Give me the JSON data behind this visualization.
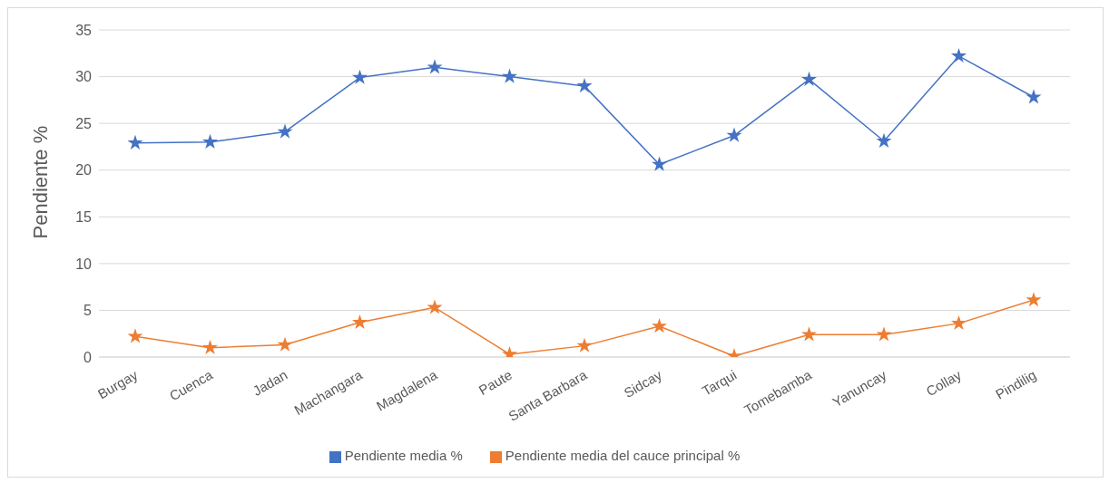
{
  "chart_data": {
    "type": "line",
    "ylabel": "Pendiente %",
    "categories": [
      "Burgay",
      "Cuenca",
      "Jadan",
      "Machangara",
      "Magdalena",
      "Paute",
      "Santa Barbara",
      "Sidcay",
      "Tarqui",
      "Tomebamba",
      "Yanuncay",
      "Collay",
      "Pindilig"
    ],
    "series": [
      {
        "name": "Pendiente media %",
        "color": "#4472c4",
        "values": [
          22.9,
          23.0,
          24.1,
          29.9,
          31.0,
          30.0,
          29.0,
          20.6,
          23.7,
          29.7,
          23.1,
          32.2,
          27.8
        ]
      },
      {
        "name": "Pendiente media del cauce principal %",
        "color": "#ed7d31",
        "values": [
          2.2,
          1.0,
          1.3,
          3.7,
          5.3,
          0.3,
          1.2,
          3.3,
          0.1,
          2.4,
          2.4,
          3.6,
          6.1
        ]
      }
    ],
    "ylim": [
      0,
      35
    ],
    "yticks": [
      0,
      5,
      10,
      15,
      20,
      25,
      30,
      35
    ],
    "grid": "y",
    "legend": "bottom",
    "marker": "star",
    "line_style": "solid"
  }
}
